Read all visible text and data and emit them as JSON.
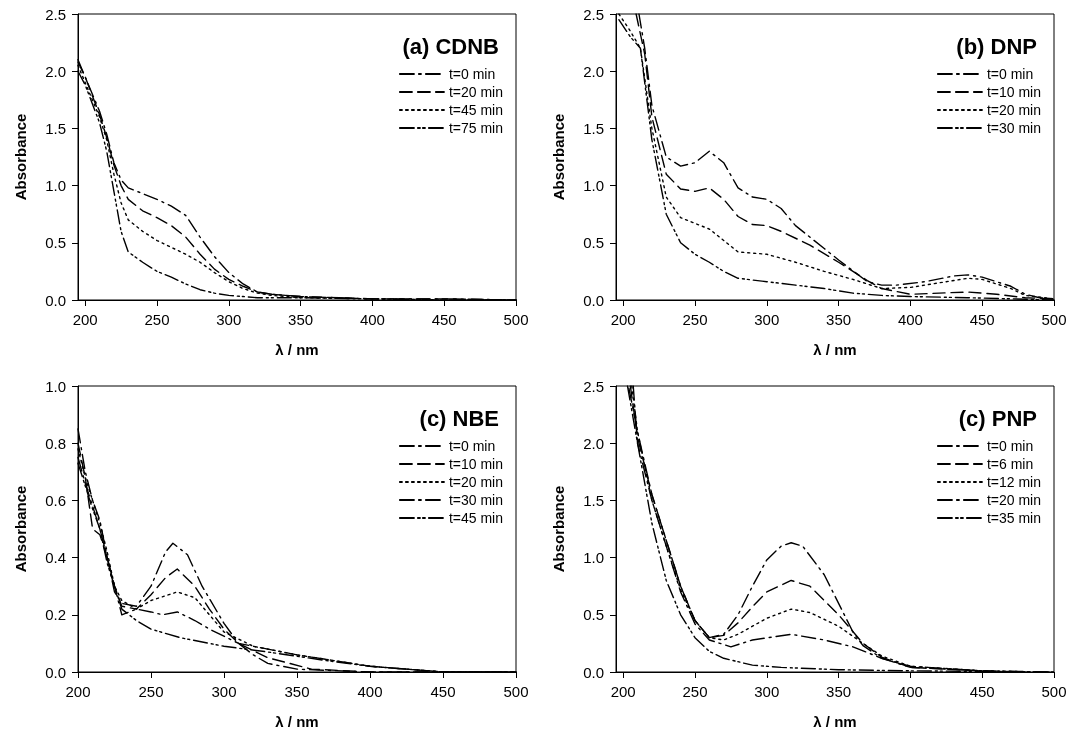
{
  "chart_data": [
    {
      "type": "line",
      "title": "(a) CDNB",
      "xlabel": "λ / nm",
      "ylabel": "Absorbance",
      "xlim": [
        195,
        500
      ],
      "xticks": [
        200,
        250,
        300,
        350,
        400,
        450,
        500
      ],
      "ylim": [
        0,
        2.5
      ],
      "yticks": [
        {
          "value": 0,
          "label": "0.0"
        },
        0.5,
        {
          "value": 1,
          "label": "1.0"
        },
        1.5,
        {
          "value": 2,
          "label": "2.0"
        },
        2.5
      ],
      "grid": false,
      "legend": "top right",
      "marker": "none",
      "x": [
        195,
        200,
        210,
        215,
        220,
        225,
        230,
        240,
        250,
        260,
        270,
        280,
        290,
        300,
        310,
        320,
        330,
        350,
        400,
        450,
        500
      ],
      "series": [
        {
          "name": "t=0 min",
          "color": "#000000",
          "line_style": "dashdot",
          "values": [
            2.1,
            1.95,
            1.65,
            1.45,
            1.2,
            1.05,
            0.98,
            0.93,
            0.88,
            0.82,
            0.74,
            0.55,
            0.38,
            0.24,
            0.14,
            0.07,
            0.05,
            0.03,
            0.01,
            0.01,
            0.0
          ]
        },
        {
          "name": "t=20 min",
          "color": "#000000",
          "line_style": "dashed",
          "values": [
            2.08,
            1.95,
            1.62,
            1.42,
            1.18,
            1.0,
            0.88,
            0.78,
            0.72,
            0.65,
            0.55,
            0.4,
            0.27,
            0.18,
            0.12,
            0.07,
            0.05,
            0.03,
            0.01,
            0.01,
            0.0
          ]
        },
        {
          "name": "t=45 min",
          "color": "#000000",
          "line_style": "dotted",
          "values": [
            2.05,
            1.9,
            1.6,
            1.4,
            1.1,
            0.85,
            0.7,
            0.6,
            0.52,
            0.46,
            0.4,
            0.33,
            0.24,
            0.16,
            0.1,
            0.06,
            0.04,
            0.02,
            0.01,
            0.0,
            0.0
          ]
        },
        {
          "name": "t=75 min",
          "color": "#000000",
          "line_style": "dashdotdot",
          "values": [
            2.0,
            1.88,
            1.55,
            1.3,
            0.95,
            0.6,
            0.42,
            0.33,
            0.25,
            0.2,
            0.14,
            0.09,
            0.06,
            0.04,
            0.03,
            0.02,
            0.02,
            0.02,
            0.01,
            0.0,
            0.0
          ]
        }
      ]
    },
    {
      "type": "line",
      "title": "(b) DNP",
      "xlabel": "λ / nm",
      "ylabel": "Absorbance",
      "xlim": [
        195,
        500
      ],
      "xticks": [
        200,
        250,
        300,
        350,
        400,
        450,
        500
      ],
      "ylim": [
        0,
        2.5
      ],
      "yticks": [
        {
          "value": 0,
          "label": "0.0"
        },
        0.5,
        {
          "value": 1,
          "label": "1.0"
        },
        1.5,
        {
          "value": 2,
          "label": "2.0"
        },
        2.5
      ],
      "grid": false,
      "legend": "top right",
      "marker": "none",
      "series": [
        {
          "name": "t=0 min",
          "color": "#000000",
          "line_style": "dashdot",
          "x": [
            211,
            215,
            220,
            230,
            240,
            250,
            260,
            270,
            280,
            290,
            300,
            310,
            320,
            340,
            350,
            370,
            380,
            390,
            410,
            430,
            440,
            450,
            470,
            480,
            490,
            500
          ],
          "values": [
            2.5,
            2.2,
            1.7,
            1.25,
            1.17,
            1.2,
            1.3,
            1.2,
            0.98,
            0.9,
            0.88,
            0.8,
            0.65,
            0.45,
            0.35,
            0.16,
            0.13,
            0.13,
            0.16,
            0.21,
            0.22,
            0.2,
            0.12,
            0.05,
            0.02,
            0.01
          ]
        },
        {
          "name": "t=10 min",
          "color": "#000000",
          "line_style": "dashed",
          "x": [
            209,
            215,
            220,
            230,
            240,
            250,
            260,
            270,
            280,
            290,
            300,
            310,
            330,
            350,
            370,
            380,
            400,
            420,
            440,
            460,
            480,
            500
          ],
          "values": [
            2.5,
            2.15,
            1.6,
            1.1,
            0.97,
            0.95,
            0.98,
            0.88,
            0.73,
            0.66,
            0.65,
            0.6,
            0.48,
            0.33,
            0.17,
            0.1,
            0.05,
            0.06,
            0.07,
            0.05,
            0.02,
            0.01
          ]
        },
        {
          "name": "t=20 min",
          "color": "#000000",
          "line_style": "dotted",
          "x": [
            197,
            205,
            212,
            220,
            230,
            240,
            250,
            260,
            270,
            280,
            300,
            320,
            340,
            360,
            380,
            400,
            420,
            440,
            450,
            470,
            480,
            500
          ],
          "values": [
            2.5,
            2.35,
            2.2,
            1.5,
            0.9,
            0.72,
            0.67,
            0.62,
            0.52,
            0.42,
            0.4,
            0.33,
            0.25,
            0.18,
            0.1,
            0.11,
            0.15,
            0.19,
            0.18,
            0.1,
            0.04,
            0.01
          ]
        },
        {
          "name": "t=30 min",
          "color": "#000000",
          "line_style": "dashdotdot",
          "x": [
            197,
            205,
            212,
            220,
            230,
            240,
            250,
            260,
            270,
            280,
            300,
            320,
            340,
            360,
            380,
            400,
            440,
            500
          ],
          "values": [
            2.45,
            2.3,
            2.2,
            1.4,
            0.75,
            0.5,
            0.4,
            0.33,
            0.25,
            0.19,
            0.16,
            0.13,
            0.1,
            0.06,
            0.04,
            0.03,
            0.02,
            0.0
          ]
        }
      ]
    },
    {
      "type": "line",
      "title": "(c) NBE",
      "xlabel": "λ / nm",
      "ylabel": "Absorbance",
      "xlim": [
        200,
        500
      ],
      "xticks": [
        200,
        250,
        300,
        350,
        400,
        450,
        500
      ],
      "ylim": [
        0,
        1
      ],
      "yticks": [
        {
          "value": 0,
          "label": "0.0"
        },
        0.2,
        0.4,
        0.6,
        0.8,
        {
          "value": 1,
          "label": "1.0"
        }
      ],
      "grid": false,
      "legend": "top right",
      "marker": "none",
      "series": [
        {
          "name": "t=0 min",
          "color": "#000000",
          "line_style": "dashdot",
          "x": [
            200,
            205,
            210,
            215,
            220,
            225,
            230,
            240,
            250,
            260,
            265,
            275,
            285,
            300,
            310,
            320,
            330,
            350,
            400,
            500
          ],
          "values": [
            0.85,
            0.7,
            0.6,
            0.53,
            0.4,
            0.28,
            0.24,
            0.23,
            0.3,
            0.42,
            0.45,
            0.41,
            0.3,
            0.17,
            0.1,
            0.06,
            0.03,
            0.01,
            0.0,
            0.0
          ]
        },
        {
          "name": "t=10 min",
          "color": "#000000",
          "line_style": "dashed",
          "x": [
            200,
            205,
            210,
            215,
            220,
            225,
            230,
            240,
            250,
            260,
            268,
            280,
            290,
            300,
            310,
            330,
            360,
            400,
            500
          ],
          "values": [
            0.8,
            0.68,
            0.5,
            0.48,
            0.4,
            0.3,
            0.23,
            0.22,
            0.27,
            0.33,
            0.36,
            0.3,
            0.22,
            0.15,
            0.1,
            0.05,
            0.01,
            0.0,
            0.0
          ]
        },
        {
          "name": "t=20 min",
          "color": "#000000",
          "line_style": "dotted",
          "x": [
            200,
            205,
            210,
            215,
            220,
            225,
            230,
            240,
            250,
            268,
            280,
            290,
            300,
            320,
            350,
            400,
            450,
            500
          ],
          "values": [
            0.78,
            0.68,
            0.6,
            0.52,
            0.42,
            0.3,
            0.25,
            0.22,
            0.25,
            0.28,
            0.26,
            0.2,
            0.14,
            0.09,
            0.06,
            0.02,
            0.0,
            0.0
          ]
        },
        {
          "name": "t=30 min",
          "color": "#000000",
          "line_style": "dashdot",
          "x": [
            200,
            205,
            210,
            215,
            220,
            225,
            230,
            240,
            250,
            258,
            268,
            280,
            290,
            310,
            350,
            400,
            450,
            500
          ],
          "values": [
            0.75,
            0.66,
            0.58,
            0.5,
            0.4,
            0.3,
            0.2,
            0.22,
            0.21,
            0.2,
            0.21,
            0.18,
            0.15,
            0.1,
            0.06,
            0.02,
            0.0,
            0.0
          ]
        },
        {
          "name": "t=45 min",
          "color": "#000000",
          "line_style": "dashdotdot",
          "x": [
            200,
            205,
            210,
            215,
            220,
            230,
            240,
            250,
            270,
            300,
            330,
            370,
            400,
            450,
            500
          ],
          "values": [
            0.73,
            0.65,
            0.57,
            0.5,
            0.38,
            0.22,
            0.18,
            0.15,
            0.12,
            0.09,
            0.07,
            0.04,
            0.02,
            0.0,
            0.0
          ]
        }
      ]
    },
    {
      "type": "line",
      "title": "(c) PNP",
      "xlabel": "λ / nm",
      "ylabel": "Absorbance",
      "xlim": [
        195,
        500
      ],
      "xticks": [
        200,
        250,
        300,
        350,
        400,
        450,
        500
      ],
      "ylim": [
        0,
        2.5
      ],
      "yticks": [
        {
          "value": 0,
          "label": "0.0"
        },
        0.5,
        {
          "value": 1,
          "label": "1.0"
        },
        1.5,
        {
          "value": 2,
          "label": "2.0"
        },
        2.5
      ],
      "grid": false,
      "legend": "top right",
      "marker": "none",
      "series": [
        {
          "name": "t=0 min",
          "color": "#000000",
          "line_style": "dashdot",
          "x": [
            204,
            210,
            220,
            230,
            240,
            250,
            260,
            270,
            280,
            290,
            300,
            310,
            317,
            325,
            340,
            350,
            360,
            367,
            380,
            400,
            450,
            500
          ],
          "values": [
            2.48,
            2.1,
            1.55,
            1.15,
            0.75,
            0.45,
            0.3,
            0.33,
            0.5,
            0.75,
            0.98,
            1.1,
            1.13,
            1.1,
            0.85,
            0.6,
            0.35,
            0.23,
            0.12,
            0.04,
            0.01,
            0.0
          ]
        },
        {
          "name": "t=6 min",
          "color": "#000000",
          "line_style": "dashed",
          "x": [
            205,
            210,
            220,
            230,
            240,
            250,
            260,
            270,
            280,
            290,
            300,
            317,
            330,
            350,
            367,
            380,
            400,
            450,
            470
          ],
          "values": [
            2.5,
            2.05,
            1.55,
            1.15,
            0.75,
            0.45,
            0.3,
            0.32,
            0.43,
            0.57,
            0.7,
            0.8,
            0.75,
            0.5,
            0.25,
            0.13,
            0.04,
            0.01,
            0.0
          ]
        },
        {
          "name": "t=12 min",
          "color": "#000000",
          "line_style": "dotted",
          "x": [
            206,
            210,
            220,
            230,
            240,
            250,
            260,
            270,
            280,
            300,
            317,
            330,
            350,
            367,
            380,
            400,
            450,
            490
          ],
          "values": [
            2.5,
            2.1,
            1.5,
            1.1,
            0.72,
            0.45,
            0.3,
            0.28,
            0.33,
            0.47,
            0.55,
            0.52,
            0.4,
            0.25,
            0.14,
            0.05,
            0.01,
            0.0
          ]
        },
        {
          "name": "t=20 min",
          "color": "#000000",
          "line_style": "dashdot",
          "x": [
            207,
            210,
            220,
            230,
            240,
            250,
            260,
            275,
            290,
            317,
            340,
            360,
            380,
            400,
            450,
            480
          ],
          "values": [
            2.5,
            2.0,
            1.5,
            1.1,
            0.7,
            0.42,
            0.28,
            0.22,
            0.28,
            0.33,
            0.28,
            0.22,
            0.12,
            0.05,
            0.01,
            0.0
          ]
        },
        {
          "name": "t=35 min",
          "color": "#000000",
          "line_style": "dashdotdot",
          "x": [
            203,
            210,
            220,
            230,
            240,
            250,
            260,
            270,
            290,
            310,
            350,
            400,
            500
          ],
          "values": [
            2.5,
            2.0,
            1.3,
            0.8,
            0.5,
            0.3,
            0.18,
            0.12,
            0.06,
            0.04,
            0.02,
            0.01,
            0.0
          ]
        }
      ]
    }
  ]
}
